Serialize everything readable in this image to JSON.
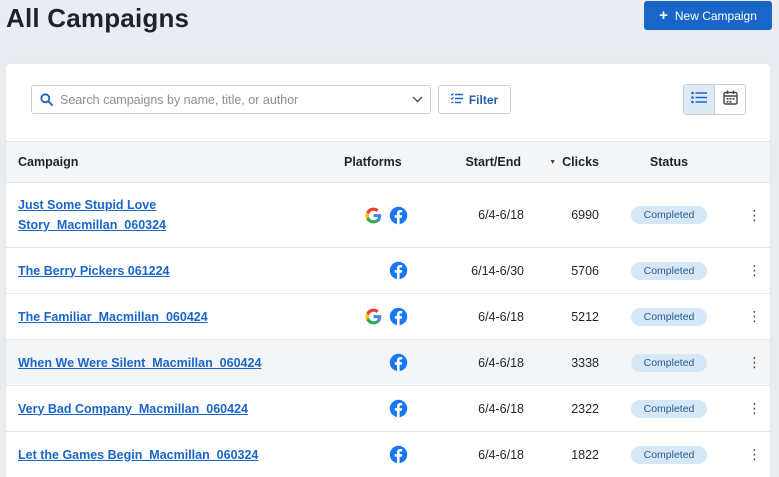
{
  "header": {
    "title": "All Campaigns",
    "new_button_label": "New Campaign"
  },
  "toolbar": {
    "search_placeholder": "Search campaigns by name, title, or author",
    "filter_label": "Filter",
    "view_list_icon": "list-icon",
    "view_calendar_icon": "calendar-icon"
  },
  "table": {
    "columns": {
      "campaign": "Campaign",
      "platforms": "Platforms",
      "start_end": "Start/End",
      "clicks": "Clicks",
      "status": "Status"
    },
    "rows": [
      {
        "name": "Just Some Stupid Love Story_Macmillan_060324",
        "name_line1": "Just Some Stupid Love",
        "name_line2": "Story_Macmillan_060324",
        "platforms": [
          "google",
          "facebook"
        ],
        "dates": "6/4-6/18",
        "clicks": "6990",
        "status": "Completed"
      },
      {
        "name": "The Berry Pickers 061224",
        "platforms": [
          "facebook"
        ],
        "dates": "6/14-6/30",
        "clicks": "5706",
        "status": "Completed"
      },
      {
        "name": "The Familiar_Macmillan_060424",
        "platforms": [
          "google",
          "facebook"
        ],
        "dates": "6/4-6/18",
        "clicks": "5212",
        "status": "Completed"
      },
      {
        "name": "When We Were Silent_Macmillan_060424",
        "platforms": [
          "facebook"
        ],
        "dates": "6/4-6/18",
        "clicks": "3338",
        "status": "Completed"
      },
      {
        "name": "Very Bad Company_Macmillan_060424",
        "platforms": [
          "facebook"
        ],
        "dates": "6/4-6/18",
        "clicks": "2322",
        "status": "Completed"
      },
      {
        "name": "Let the Games Begin_Macmillan_060324",
        "platforms": [
          "facebook"
        ],
        "dates": "6/4-6/18",
        "clicks": "1822",
        "status": "Completed"
      }
    ]
  },
  "colors": {
    "accent": "#1a66c8",
    "badge_bg": "#d6e8f7",
    "badge_text": "#2b5a8a",
    "page_bg": "#e9ecf0",
    "facebook": "#1877f2"
  }
}
